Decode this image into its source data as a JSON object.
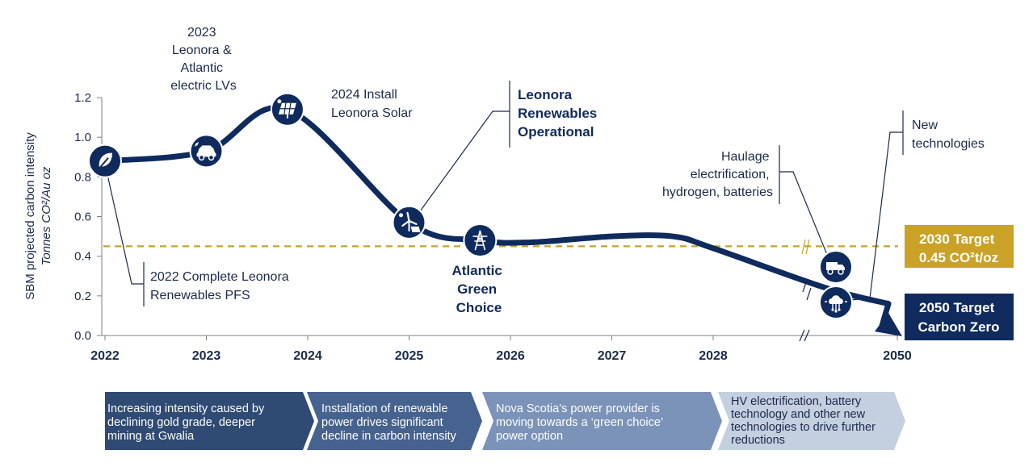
{
  "chart_data": {
    "type": "line",
    "title": "",
    "ylabel": "SBM projected carbon intensity",
    "ylabel_sub": "Tonnes CO²/Au oz",
    "ylim": [
      0,
      1.2
    ],
    "yticks": [
      "0.0",
      "0.2",
      "0.4",
      "0.6",
      "0.8",
      "1.0",
      "1.2"
    ],
    "xticks": [
      "2022",
      "2023",
      "2024",
      "2025",
      "2026",
      "2027",
      "2028",
      "2050"
    ],
    "series": [
      {
        "name": "SBM projected carbon intensity",
        "x": [
          2022,
          2023,
          2023.8,
          2025,
          2025.7,
          2026.2,
          2027,
          2027.6,
          2028,
          2028.9,
          2029.4
        ],
        "values": [
          0.88,
          0.93,
          1.14,
          0.57,
          0.48,
          0.47,
          0.5,
          0.5,
          0.44,
          0.24,
          0.16
        ]
      }
    ],
    "target_line": {
      "value": 0.45,
      "color": "#c9a227"
    },
    "milestones": [
      {
        "x": 2022,
        "y": 0.88,
        "icon": "leaf-icon"
      },
      {
        "x": 2023,
        "y": 0.93,
        "icon": "electric-car-icon"
      },
      {
        "x": 2023.8,
        "y": 1.14,
        "icon": "solar-panel-icon"
      },
      {
        "x": 2025,
        "y": 0.57,
        "icon": "wind-solar-icon"
      },
      {
        "x": 2025.7,
        "y": 0.48,
        "icon": "power-pylon-icon"
      },
      {
        "x": 2028.9,
        "y": 0.34,
        "icon": "haul-truck-icon"
      },
      {
        "x": 2028.9,
        "y": 0.16,
        "icon": "network-technology-icon"
      }
    ],
    "annotations": {
      "lvs": [
        "2023",
        "Leonora &",
        "Atlantic",
        "electric LVs"
      ],
      "solar": [
        "2024 Install",
        "Leonora Solar"
      ],
      "renewables": [
        "Leonora",
        "Renewables",
        "Operational"
      ],
      "pfs": [
        "2022 Complete Leonora",
        "Renewables PFS"
      ],
      "green": [
        "Atlantic",
        "Green",
        "Choice"
      ],
      "haulage": [
        "Haulage",
        "electrification,",
        "hydrogen, batteries"
      ],
      "newtech": [
        "New",
        "technologies"
      ]
    },
    "target_2030": [
      "2030 Target",
      "0.45 CO²t/oz"
    ],
    "target_2050": [
      "2050 Target",
      "Carbon Zero"
    ]
  },
  "phases": [
    {
      "text": [
        "Increasing intensity caused by",
        "declining gold grade, deeper",
        "mining at Gwalia"
      ]
    },
    {
      "text": [
        "Installation  of renewable",
        "power drives significant",
        "decline in carbon intensity"
      ]
    },
    {
      "text": [
        "Nova Scotia’s power provider is",
        "moving towards a ‘green choice’",
        "power option"
      ]
    },
    {
      "text": [
        "HV electrification, battery",
        "technology and other new",
        "technologies to drive further",
        "reductions"
      ]
    }
  ],
  "colors": {
    "navy": "#0f2a5c",
    "gold": "#c9a227",
    "axis": "#7f7f7f",
    "phase1": "#2f4a73",
    "phase2": "#46628f",
    "phase3": "#7b93b8",
    "phase4": "#c4cfe0"
  }
}
